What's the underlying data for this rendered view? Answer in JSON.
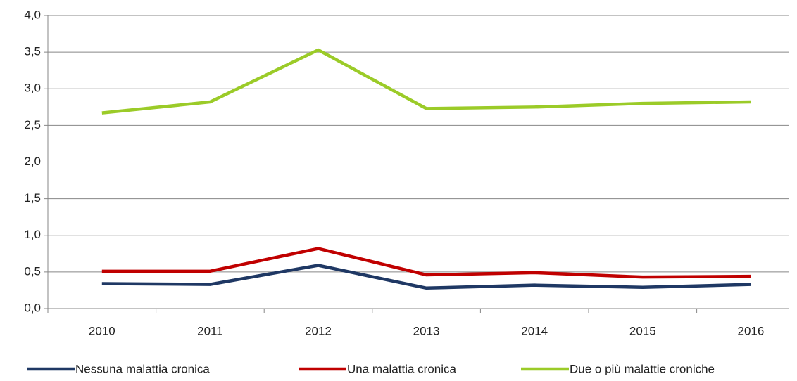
{
  "chart_data": {
    "type": "line",
    "categories": [
      "2010",
      "2011",
      "2012",
      "2013",
      "2014",
      "2015",
      "2016"
    ],
    "series": [
      {
        "name": "Nessuna malattia cronica",
        "color": "#1f3864",
        "values": [
          0.34,
          0.33,
          0.59,
          0.28,
          0.32,
          0.29,
          0.33
        ]
      },
      {
        "name": "Una malattia cronica",
        "color": "#c00000",
        "values": [
          0.51,
          0.51,
          0.82,
          0.46,
          0.49,
          0.43,
          0.44
        ]
      },
      {
        "name": "Due o più malattie croniche",
        "color": "#9bcb28",
        "values": [
          2.67,
          2.82,
          3.53,
          2.73,
          2.75,
          2.8,
          2.82
        ]
      }
    ],
    "ylim": [
      0,
      4
    ],
    "yticks": [
      {
        "value": 0,
        "label": "0,0"
      },
      {
        "value": 0.5,
        "label": "0,5"
      },
      {
        "value": 1,
        "label": "1,0"
      },
      {
        "value": 1.5,
        "label": "1,5"
      },
      {
        "value": 2,
        "label": "2,0"
      },
      {
        "value": 2.5,
        "label": "2,5"
      },
      {
        "value": 3,
        "label": "3,0"
      },
      {
        "value": 3.5,
        "label": "3,5"
      },
      {
        "value": 4,
        "label": "4,0"
      }
    ],
    "grid": true,
    "legend": "bottom"
  }
}
